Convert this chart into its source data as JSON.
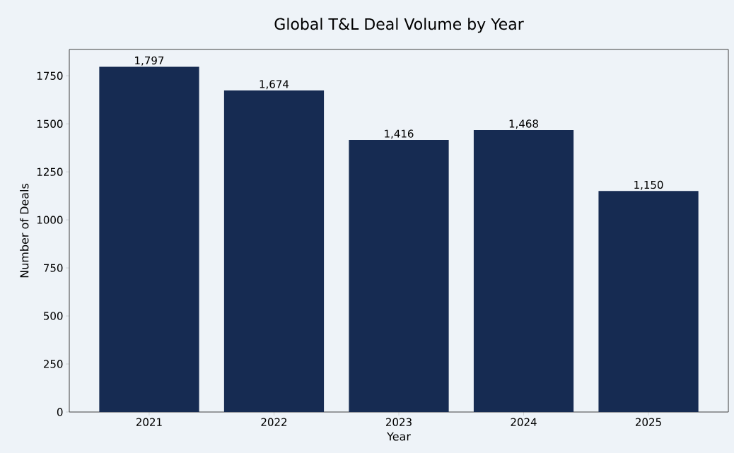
{
  "chart_data": {
    "type": "bar",
    "title": "Global T&L Deal Volume by Year",
    "xlabel": "Year",
    "ylabel": "Number of Deals",
    "categories": [
      "2021",
      "2022",
      "2023",
      "2024",
      "2025"
    ],
    "values": [
      1797,
      1674,
      1416,
      1468,
      1150
    ],
    "value_labels": [
      "1,797",
      "1,674",
      "1,416",
      "1,468",
      "1,150"
    ],
    "color": "#162b52",
    "ylim": [
      0,
      1887
    ],
    "yticks": [
      0,
      250,
      500,
      750,
      1000,
      1250,
      1500,
      1750
    ],
    "grid": false
  }
}
